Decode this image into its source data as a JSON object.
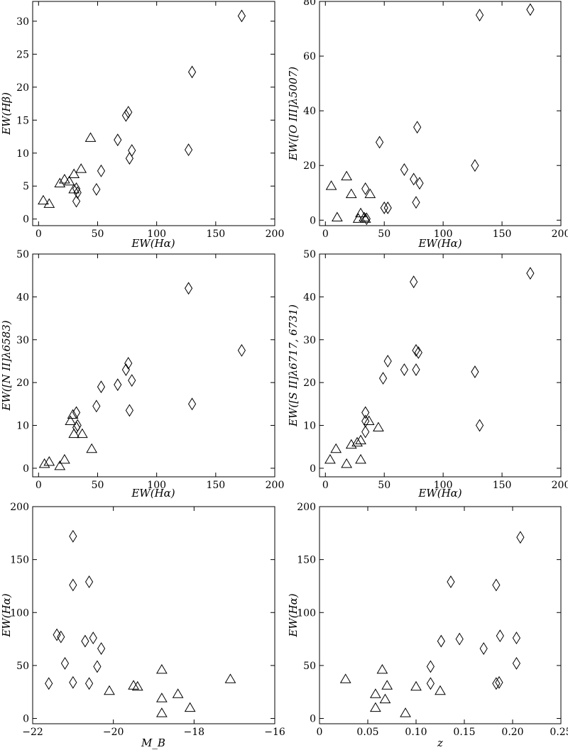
{
  "chart_data": [
    {
      "type": "scatter",
      "panel": "top-left",
      "xlabel": "EW(Hα)",
      "ylabel": "EW(Hβ)",
      "xlim": [
        -5,
        200
      ],
      "ylim": [
        -1,
        33
      ],
      "xticks": [
        0,
        50,
        100,
        150,
        200
      ],
      "yticks": [
        0,
        5,
        10,
        15,
        20,
        25,
        30
      ],
      "series": [
        {
          "marker": "triangle",
          "points": [
            [
              4,
              2.8
            ],
            [
              9,
              2.3
            ],
            [
              18,
              5.4
            ],
            [
              22,
              6.0
            ],
            [
              26,
              5.7
            ],
            [
              30,
              6.8
            ],
            [
              30,
              4.5
            ],
            [
              36,
              7.6
            ],
            [
              44,
              12.3
            ]
          ]
        },
        {
          "marker": "diamond",
          "points": [
            [
              32,
              4.6
            ],
            [
              33,
              4.0
            ],
            [
              32,
              2.7
            ],
            [
              49,
              4.5
            ],
            [
              53,
              7.3
            ],
            [
              67,
              12.0
            ],
            [
              74,
              15.7
            ],
            [
              76,
              16.2
            ],
            [
              77,
              9.2
            ],
            [
              79,
              10.4
            ],
            [
              127,
              10.5
            ],
            [
              130,
              22.3
            ],
            [
              172,
              30.8
            ]
          ]
        }
      ]
    },
    {
      "type": "scatter",
      "panel": "top-right",
      "xlabel": "EW(Hα)",
      "ylabel": "EW([O III]λ5007)",
      "xlim": [
        -5,
        200
      ],
      "ylim": [
        -2,
        80
      ],
      "xticks": [
        0,
        50,
        100,
        150,
        200
      ],
      "yticks": [
        0,
        20,
        40,
        60,
        80
      ],
      "series": [
        {
          "marker": "triangle",
          "points": [
            [
              5,
              12.5
            ],
            [
              10,
              1.0
            ],
            [
              18,
              16.0
            ],
            [
              22,
              9.5
            ],
            [
              28,
              0.5
            ],
            [
              30,
              2.5
            ],
            [
              33,
              1.0
            ],
            [
              34,
              0.5
            ],
            [
              38,
              9.5
            ]
          ]
        },
        {
          "marker": "diamond",
          "points": [
            [
              34,
              11.5
            ],
            [
              35,
              0.5
            ],
            [
              46,
              28.5
            ],
            [
              50,
              4.5
            ],
            [
              53,
              4.5
            ],
            [
              67,
              18.5
            ],
            [
              75,
              15.0
            ],
            [
              77,
              6.5
            ],
            [
              78,
              34.0
            ],
            [
              80,
              13.5
            ],
            [
              127,
              20.0
            ],
            [
              131,
              75.0
            ],
            [
              174,
              77.0
            ]
          ]
        }
      ]
    },
    {
      "type": "scatter",
      "panel": "middle-left",
      "xlabel": "EW(Hα)",
      "ylabel": "EW([N II]λ6583)",
      "xlim": [
        -5,
        200
      ],
      "ylim": [
        -2,
        50
      ],
      "xticks": [
        0,
        50,
        100,
        150,
        200
      ],
      "yticks": [
        0,
        10,
        20,
        30,
        40,
        50
      ],
      "series": [
        {
          "marker": "triangle",
          "points": [
            [
              5,
              1.0
            ],
            [
              9,
              1.5
            ],
            [
              18,
              0.5
            ],
            [
              22,
              2.0
            ],
            [
              27,
              11.0
            ],
            [
              29,
              12.5
            ],
            [
              30,
              8.0
            ],
            [
              37,
              8.0
            ],
            [
              45,
              4.5
            ]
          ]
        },
        {
          "marker": "diamond",
          "points": [
            [
              32,
              13.0
            ],
            [
              32,
              9.5
            ],
            [
              33,
              10.0
            ],
            [
              49,
              14.5
            ],
            [
              53,
              19.0
            ],
            [
              67,
              19.5
            ],
            [
              74,
              23.0
            ],
            [
              76,
              24.5
            ],
            [
              77,
              13.5
            ],
            [
              79,
              20.5
            ],
            [
              127,
              42.0
            ],
            [
              130,
              15.0
            ],
            [
              172,
              27.5
            ]
          ]
        }
      ]
    },
    {
      "type": "scatter",
      "panel": "middle-right",
      "xlabel": "EW(Hα)",
      "ylabel": "EW([S II]λ6717, 6731)",
      "xlim": [
        -5,
        200
      ],
      "ylim": [
        -2,
        50
      ],
      "xticks": [
        0,
        50,
        100,
        150,
        200
      ],
      "yticks": [
        0,
        10,
        20,
        30,
        40,
        50
      ],
      "series": [
        {
          "marker": "triangle",
          "points": [
            [
              4,
              2.0
            ],
            [
              9,
              4.5
            ],
            [
              18,
              1.0
            ],
            [
              22,
              5.5
            ],
            [
              27,
              6.0
            ],
            [
              30,
              6.5
            ],
            [
              30,
              2.0
            ],
            [
              37,
              11.0
            ],
            [
              45,
              9.5
            ]
          ]
        },
        {
          "marker": "diamond",
          "points": [
            [
              34,
              13.0
            ],
            [
              34,
              11.0
            ],
            [
              34,
              8.5
            ],
            [
              49,
              21.0
            ],
            [
              53,
              25.0
            ],
            [
              67,
              23.0
            ],
            [
              75,
              43.5
            ],
            [
              77,
              27.5
            ],
            [
              77,
              23.0
            ],
            [
              79,
              27.0
            ],
            [
              127,
              22.5
            ],
            [
              131,
              10.0
            ],
            [
              174,
              45.5
            ]
          ]
        }
      ]
    },
    {
      "type": "scatter",
      "panel": "bottom-left",
      "xlabel": "M_B",
      "ylabel": "EW(Hα)",
      "xlim": [
        -22,
        -16
      ],
      "ylim": [
        -5,
        200
      ],
      "xticks": [
        -22,
        -20,
        -18,
        -16
      ],
      "yticks": [
        0,
        50,
        100,
        150,
        200
      ],
      "series": [
        {
          "marker": "triangle",
          "points": [
            [
              -18.8,
              46
            ],
            [
              -18.8,
              19
            ],
            [
              -18.8,
              5
            ],
            [
              -18.4,
              23
            ],
            [
              -18.1,
              10
            ],
            [
              -17.1,
              37
            ],
            [
              -19.5,
              31
            ],
            [
              -19.4,
              30
            ],
            [
              -20.1,
              26
            ]
          ]
        },
        {
          "marker": "diamond",
          "points": [
            [
              -21.0,
              172
            ],
            [
              -21.0,
              126
            ],
            [
              -20.6,
              129
            ],
            [
              -21.4,
              79
            ],
            [
              -21.3,
              77
            ],
            [
              -20.5,
              76
            ],
            [
              -20.7,
              73
            ],
            [
              -20.3,
              66
            ],
            [
              -21.2,
              52
            ],
            [
              -20.4,
              49
            ],
            [
              -21.6,
              33
            ],
            [
              -21.0,
              34
            ],
            [
              -20.6,
              33
            ]
          ]
        }
      ]
    },
    {
      "type": "scatter",
      "panel": "bottom-right",
      "xlabel": "z",
      "ylabel": "EW(Hα)",
      "xlim": [
        0.0,
        0.25
      ],
      "ylim": [
        -5,
        200
      ],
      "xticks": [
        0.0,
        0.05,
        0.1,
        0.15,
        0.2,
        0.25
      ],
      "yticks": [
        0,
        50,
        100,
        150,
        200
      ],
      "series": [
        {
          "marker": "triangle",
          "points": [
            [
              0.027,
              37
            ],
            [
              0.058,
              23
            ],
            [
              0.058,
              10
            ],
            [
              0.065,
              46
            ],
            [
              0.068,
              18
            ],
            [
              0.07,
              31
            ],
            [
              0.089,
              5
            ],
            [
              0.1,
              30
            ],
            [
              0.125,
              26
            ]
          ]
        },
        {
          "marker": "diamond",
          "points": [
            [
              0.115,
              49
            ],
            [
              0.115,
              33
            ],
            [
              0.126,
              73
            ],
            [
              0.136,
              129
            ],
            [
              0.145,
              75
            ],
            [
              0.17,
              66
            ],
            [
              0.183,
              126
            ],
            [
              0.183,
              33
            ],
            [
              0.186,
              34
            ],
            [
              0.187,
              78
            ],
            [
              0.204,
              76
            ],
            [
              0.204,
              52
            ],
            [
              0.208,
              171
            ]
          ]
        }
      ]
    }
  ]
}
